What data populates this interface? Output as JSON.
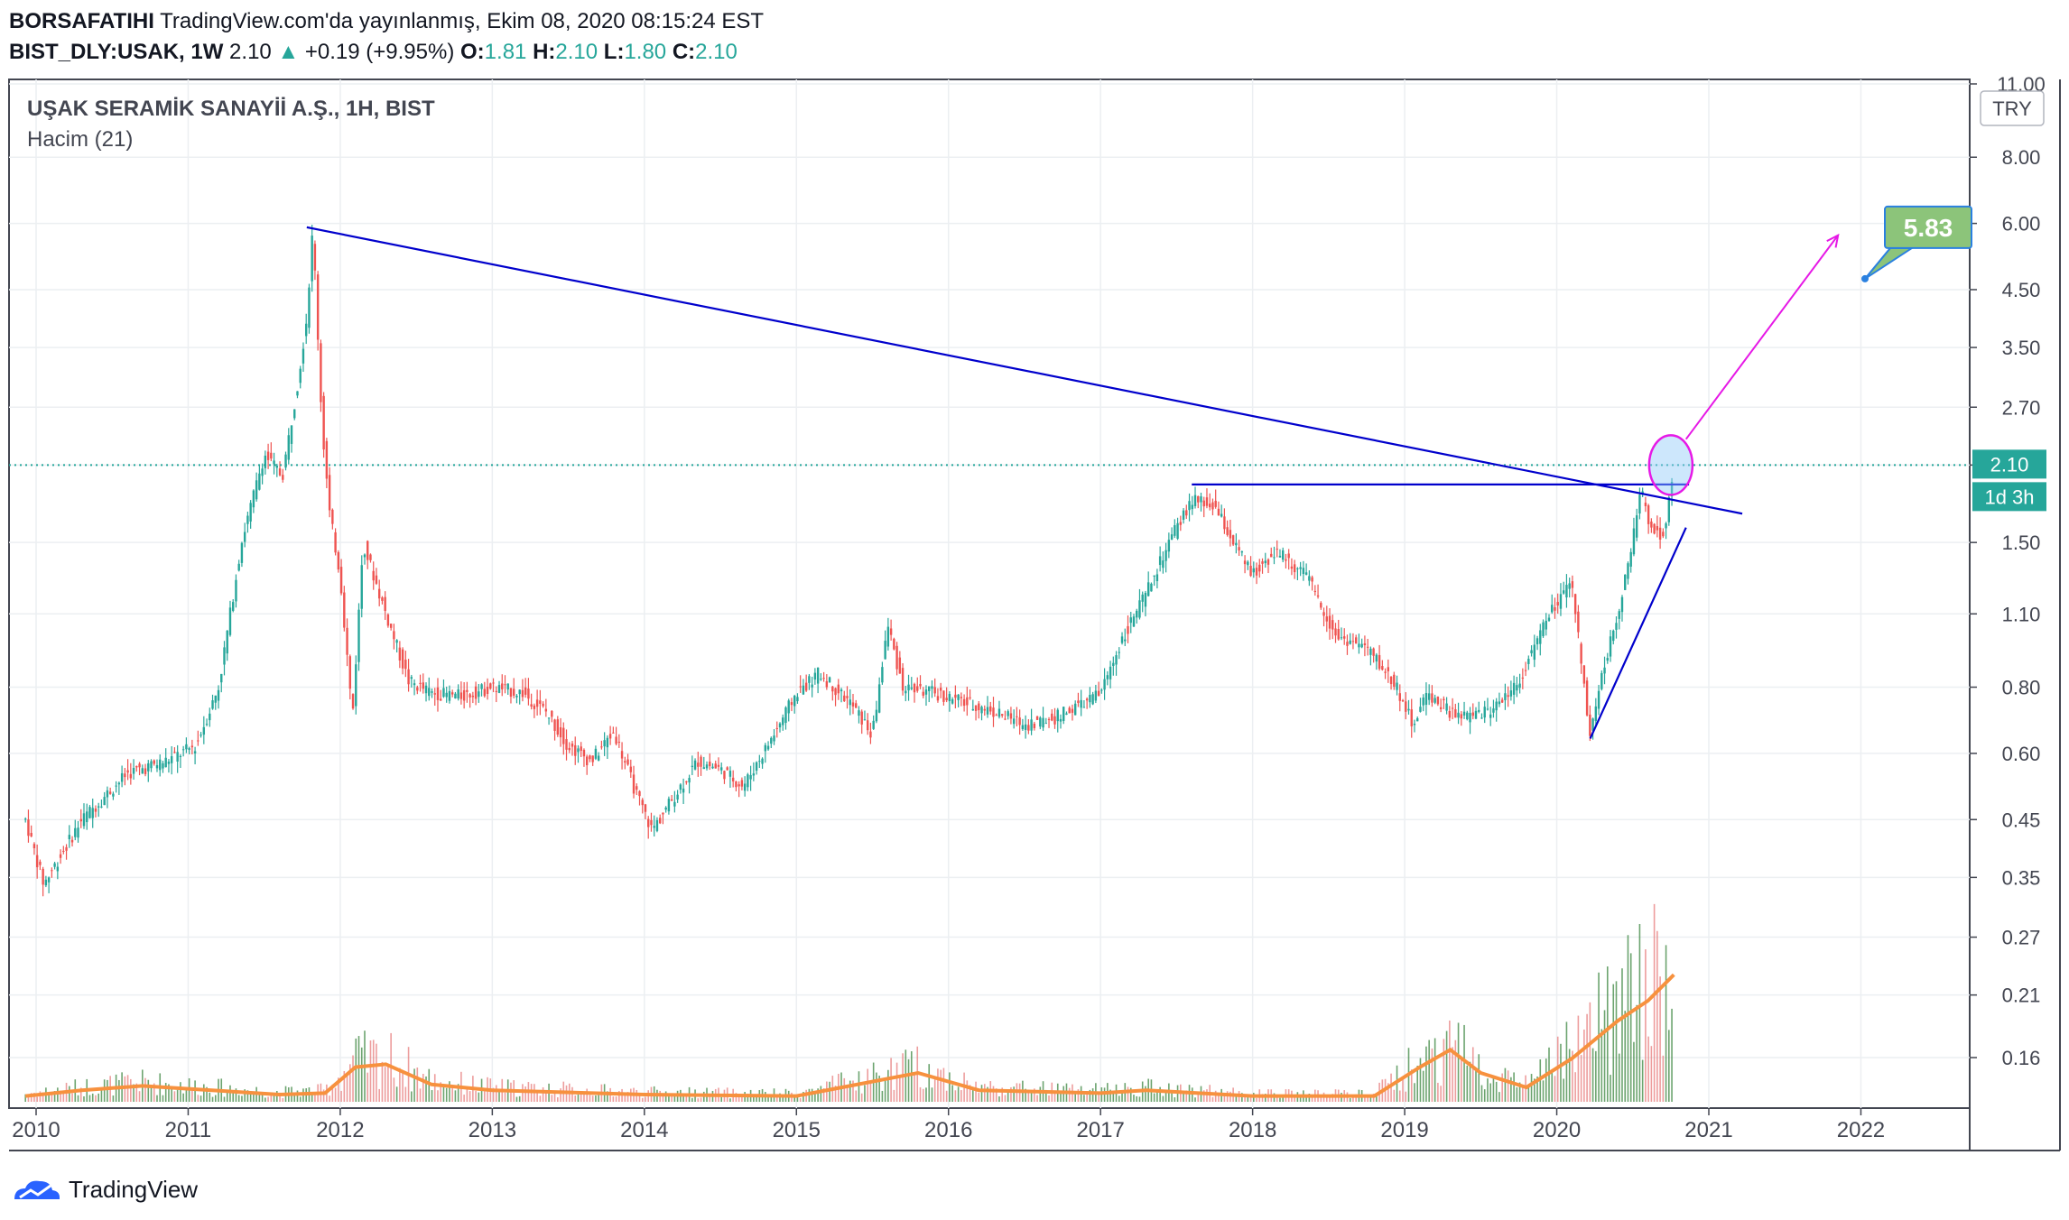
{
  "header": {
    "publisher": "BORSAFATIHI",
    "published_text": "TradingView.com'da yayınlanmış, Ekim 08, 2020 08:15:24 EST",
    "symbol": "BIST_DLY:USAK, 1W",
    "last": "2.10",
    "change": "+0.19 (+9.95%)",
    "ohlc": [
      {
        "key": "O:",
        "value": "1.81"
      },
      {
        "key": "H:",
        "value": "2.10"
      },
      {
        "key": "L:",
        "value": "1.80"
      },
      {
        "key": "C:",
        "value": "2.10"
      }
    ],
    "up_arrow": "▲"
  },
  "chart_data": {
    "type": "candlestick",
    "title": "UŞAK SERAMİK SANAYİİ A.Ş., 1H, BIST",
    "indicator": "Hacim (21)",
    "currency": "TRY",
    "y_scale": "log",
    "y_ticks": [
      "11.00",
      "8.00",
      "6.00",
      "4.50",
      "3.50",
      "2.70",
      "2.10",
      "1.50",
      "1.10",
      "0.80",
      "0.60",
      "0.45",
      "0.35",
      "0.27",
      "0.21",
      "0.16"
    ],
    "x_ticks": [
      "2010",
      "2011",
      "2012",
      "2013",
      "2014",
      "2015",
      "2016",
      "2017",
      "2018",
      "2019",
      "2020",
      "2021",
      "2022"
    ],
    "last_price_label": "2.10",
    "countdown_label": "1d 3h",
    "target_label": "5.83",
    "price_path": [
      [
        2009.93,
        0.45
      ],
      [
        2010.05,
        0.34
      ],
      [
        2010.3,
        0.45
      ],
      [
        2010.6,
        0.55
      ],
      [
        2010.85,
        0.58
      ],
      [
        2011.05,
        0.62
      ],
      [
        2011.2,
        0.8
      ],
      [
        2011.35,
        1.5
      ],
      [
        2011.5,
        2.2
      ],
      [
        2011.62,
        2.0
      ],
      [
        2011.72,
        3.0
      ],
      [
        2011.78,
        4.0
      ],
      [
        2011.82,
        5.9
      ],
      [
        2011.88,
        2.5
      ],
      [
        2011.93,
        1.7
      ],
      [
        2012.0,
        1.3
      ],
      [
        2012.08,
        0.7
      ],
      [
        2012.15,
        1.5
      ],
      [
        2012.3,
        1.1
      ],
      [
        2012.45,
        0.82
      ],
      [
        2012.6,
        0.78
      ],
      [
        2012.8,
        0.77
      ],
      [
        2013.0,
        0.8
      ],
      [
        2013.2,
        0.78
      ],
      [
        2013.35,
        0.72
      ],
      [
        2013.5,
        0.62
      ],
      [
        2013.65,
        0.58
      ],
      [
        2013.8,
        0.66
      ],
      [
        2013.95,
        0.5
      ],
      [
        2014.05,
        0.43
      ],
      [
        2014.2,
        0.5
      ],
      [
        2014.35,
        0.58
      ],
      [
        2014.5,
        0.56
      ],
      [
        2014.65,
        0.52
      ],
      [
        2014.85,
        0.65
      ],
      [
        2015.0,
        0.78
      ],
      [
        2015.15,
        0.85
      ],
      [
        2015.35,
        0.75
      ],
      [
        2015.5,
        0.65
      ],
      [
        2015.6,
        1.05
      ],
      [
        2015.7,
        0.8
      ],
      [
        2015.9,
        0.78
      ],
      [
        2016.1,
        0.75
      ],
      [
        2016.3,
        0.72
      ],
      [
        2016.5,
        0.68
      ],
      [
        2016.7,
        0.7
      ],
      [
        2016.9,
        0.75
      ],
      [
        2017.0,
        0.78
      ],
      [
        2017.15,
        1.0
      ],
      [
        2017.3,
        1.2
      ],
      [
        2017.45,
        1.5
      ],
      [
        2017.6,
        1.8
      ],
      [
        2017.75,
        1.75
      ],
      [
        2017.9,
        1.45
      ],
      [
        2018.0,
        1.3
      ],
      [
        2018.15,
        1.45
      ],
      [
        2018.35,
        1.3
      ],
      [
        2018.55,
        1.0
      ],
      [
        2018.75,
        0.95
      ],
      [
        2018.95,
        0.8
      ],
      [
        2019.05,
        0.68
      ],
      [
        2019.15,
        0.78
      ],
      [
        2019.35,
        0.7
      ],
      [
        2019.55,
        0.72
      ],
      [
        2019.75,
        0.82
      ],
      [
        2019.95,
        1.1
      ],
      [
        2020.1,
        1.25
      ],
      [
        2020.15,
        0.95
      ],
      [
        2020.22,
        0.65
      ],
      [
        2020.3,
        0.85
      ],
      [
        2020.4,
        1.1
      ],
      [
        2020.5,
        1.5
      ],
      [
        2020.55,
        1.9
      ],
      [
        2020.62,
        1.6
      ],
      [
        2020.7,
        1.55
      ],
      [
        2020.77,
        2.1
      ]
    ],
    "volume_ma_path": [
      [
        2009.93,
        0.02
      ],
      [
        2010.3,
        0.04
      ],
      [
        2010.7,
        0.055
      ],
      [
        2011.0,
        0.045
      ],
      [
        2011.6,
        0.025
      ],
      [
        2011.9,
        0.03
      ],
      [
        2012.1,
        0.12
      ],
      [
        2012.3,
        0.13
      ],
      [
        2012.6,
        0.06
      ],
      [
        2013.0,
        0.04
      ],
      [
        2014.0,
        0.025
      ],
      [
        2015.0,
        0.02
      ],
      [
        2015.3,
        0.05
      ],
      [
        2015.8,
        0.1
      ],
      [
        2016.2,
        0.04
      ],
      [
        2017.0,
        0.03
      ],
      [
        2017.3,
        0.04
      ],
      [
        2018.0,
        0.02
      ],
      [
        2018.8,
        0.02
      ],
      [
        2019.1,
        0.12
      ],
      [
        2019.3,
        0.18
      ],
      [
        2019.5,
        0.1
      ],
      [
        2019.8,
        0.05
      ],
      [
        2020.1,
        0.15
      ],
      [
        2020.4,
        0.28
      ],
      [
        2020.6,
        0.35
      ],
      [
        2020.77,
        0.44
      ]
    ],
    "annotations": [
      {
        "type": "trendline",
        "color": "#0000cc",
        "from": [
          2011.78,
          5.9
        ],
        "to": [
          2021.22,
          1.7
        ]
      },
      {
        "type": "horizontal",
        "color": "#0000cc",
        "from": [
          2017.6,
          1.93
        ],
        "to": [
          2020.87,
          1.93
        ]
      },
      {
        "type": "trendline",
        "color": "#0000cc",
        "from": [
          2020.22,
          0.64
        ],
        "to": [
          2020.85,
          1.6
        ]
      },
      {
        "type": "arrow",
        "color": "#e619e6",
        "from": [
          2020.85,
          2.35
        ],
        "to": [
          2021.85,
          5.7
        ]
      },
      {
        "type": "ellipse",
        "color": "#e619e6",
        "center": [
          2020.75,
          2.1
        ]
      },
      {
        "type": "highlight-box",
        "color": "#ffff99",
        "x_range": [
          2020.62,
          2.0209
        ]
      }
    ]
  }
}
